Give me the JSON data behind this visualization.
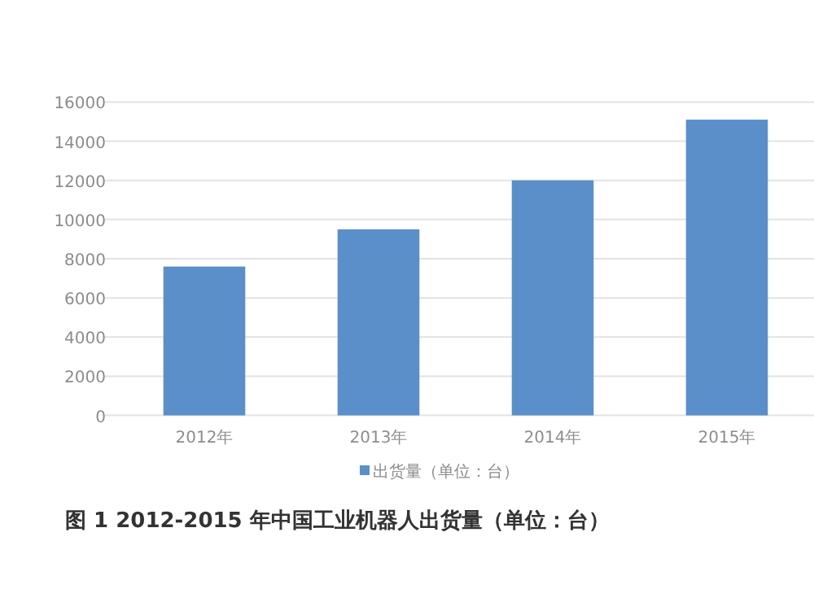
{
  "chart_data": {
    "type": "bar",
    "categories": [
      "2012年",
      "2013年",
      "2014年",
      "2015年"
    ],
    "series": [
      {
        "name": "出货量（单位：台）",
        "color": "#5b8fc9",
        "values": [
          7600,
          9500,
          12000,
          15100
        ]
      }
    ],
    "ylim": [
      0,
      16000
    ],
    "yticks": [
      0,
      2000,
      4000,
      6000,
      8000,
      10000,
      12000,
      14000,
      16000
    ],
    "grid": "y",
    "legend": "bottom",
    "annotations": [
      "图 1 2012-2015 年中国工业机器人出货量（单位：台）"
    ]
  }
}
